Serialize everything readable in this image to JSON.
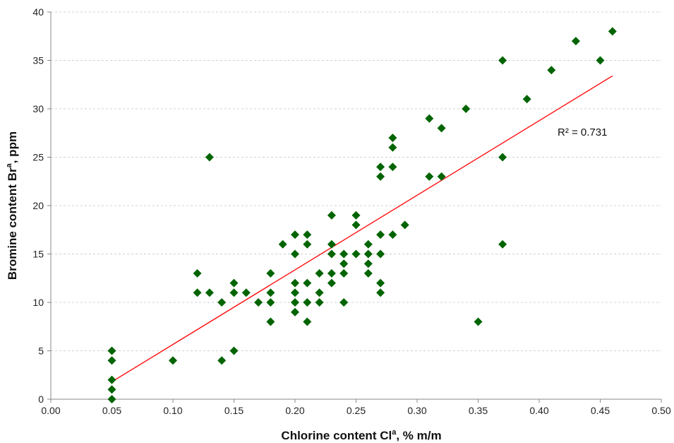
{
  "chart_data": {
    "type": "scatter",
    "title": "",
    "xlabel": "Chlorine content Cl",
    "xlabel_sup": "a",
    "xlabel_suffix": ", % m/m",
    "ylabel": "Bromine content Br",
    "ylabel_sup": "a",
    "ylabel_suffix": ", ppm",
    "xlim": [
      0.0,
      0.5
    ],
    "ylim": [
      0,
      40
    ],
    "x_ticks": [
      "0.00",
      "0.05",
      "0.10",
      "0.15",
      "0.20",
      "0.25",
      "0.30",
      "0.35",
      "0.40",
      "0.45",
      "0.50"
    ],
    "x_tick_values": [
      0.0,
      0.05,
      0.1,
      0.15,
      0.2,
      0.25,
      0.3,
      0.35,
      0.4,
      0.45,
      0.5
    ],
    "y_ticks": [
      "0",
      "5",
      "10",
      "15",
      "20",
      "25",
      "30",
      "35",
      "40"
    ],
    "y_tick_values": [
      0,
      5,
      10,
      15,
      20,
      25,
      30,
      35,
      40
    ],
    "grid": "horizontal",
    "marker_color": "#006400",
    "trendline_color": "#ff0000",
    "points": [
      [
        0.05,
        5
      ],
      [
        0.05,
        4
      ],
      [
        0.05,
        2
      ],
      [
        0.05,
        1
      ],
      [
        0.05,
        0
      ],
      [
        0.1,
        4
      ],
      [
        0.12,
        13
      ],
      [
        0.12,
        11
      ],
      [
        0.13,
        25
      ],
      [
        0.13,
        11
      ],
      [
        0.14,
        10
      ],
      [
        0.14,
        4
      ],
      [
        0.15,
        12
      ],
      [
        0.15,
        11
      ],
      [
        0.15,
        5
      ],
      [
        0.16,
        11
      ],
      [
        0.17,
        10
      ],
      [
        0.18,
        13
      ],
      [
        0.18,
        11
      ],
      [
        0.18,
        10
      ],
      [
        0.18,
        8
      ],
      [
        0.19,
        16
      ],
      [
        0.2,
        17
      ],
      [
        0.2,
        15
      ],
      [
        0.2,
        12
      ],
      [
        0.2,
        11
      ],
      [
        0.2,
        10
      ],
      [
        0.2,
        9
      ],
      [
        0.21,
        17
      ],
      [
        0.21,
        16
      ],
      [
        0.21,
        12
      ],
      [
        0.21,
        10
      ],
      [
        0.21,
        8
      ],
      [
        0.22,
        13
      ],
      [
        0.22,
        11
      ],
      [
        0.22,
        10
      ],
      [
        0.23,
        19
      ],
      [
        0.23,
        16
      ],
      [
        0.23,
        15
      ],
      [
        0.23,
        13
      ],
      [
        0.23,
        12
      ],
      [
        0.24,
        15
      ],
      [
        0.24,
        14
      ],
      [
        0.24,
        13
      ],
      [
        0.24,
        10
      ],
      [
        0.25,
        19
      ],
      [
        0.25,
        18
      ],
      [
        0.25,
        15
      ],
      [
        0.26,
        16
      ],
      [
        0.26,
        15
      ],
      [
        0.26,
        14
      ],
      [
        0.26,
        13
      ],
      [
        0.27,
        24
      ],
      [
        0.27,
        23
      ],
      [
        0.27,
        17
      ],
      [
        0.27,
        15
      ],
      [
        0.27,
        12
      ],
      [
        0.27,
        11
      ],
      [
        0.28,
        27
      ],
      [
        0.28,
        26
      ],
      [
        0.28,
        24
      ],
      [
        0.28,
        17
      ],
      [
        0.29,
        18
      ],
      [
        0.31,
        29
      ],
      [
        0.31,
        23
      ],
      [
        0.32,
        28
      ],
      [
        0.32,
        23
      ],
      [
        0.34,
        30
      ],
      [
        0.35,
        8
      ],
      [
        0.37,
        35
      ],
      [
        0.37,
        25
      ],
      [
        0.37,
        16
      ],
      [
        0.39,
        31
      ],
      [
        0.41,
        34
      ],
      [
        0.43,
        37
      ],
      [
        0.45,
        35
      ],
      [
        0.46,
        38
      ]
    ],
    "trendline": {
      "x": [
        0.05,
        0.46
      ],
      "y": [
        1.8,
        33.4
      ]
    },
    "annotations": {
      "r2": "R² = 0.731"
    }
  }
}
